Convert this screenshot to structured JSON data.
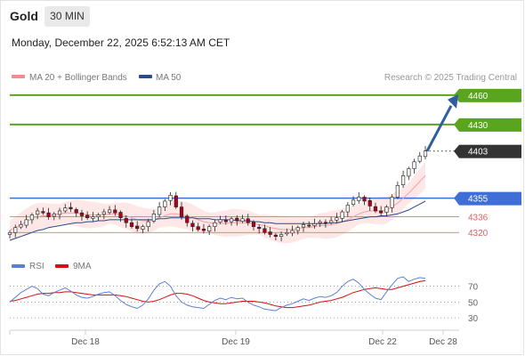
{
  "header": {
    "instrument": "Gold",
    "timeframe": "30 MIN",
    "datetime": "Monday, December 22, 2025 6:52:13 AM CET"
  },
  "legend": {
    "ma20_bb": "MA 20 + Bollinger Bands",
    "ma50": "MA 50",
    "credit": "Research © 2025 Trading Central",
    "rsi": "RSI",
    "ma9": "9MA"
  },
  "colors": {
    "up_candle": "#f7f7f7",
    "down_candle": "#b0001e",
    "bollinger_fill": "#fde0df",
    "bollinger_line": "#f6a0a0",
    "ma20": "#f6a0a0",
    "ma50": "#2a4a8a",
    "resistance": "#5aa51e",
    "pivot": "#3f6fd6",
    "support": "#e06060",
    "current": "#333333",
    "arrow": "#2f5d9f",
    "rsi": "#5b7fd8",
    "rsi_ma": "#d51010"
  },
  "chart_data": [
    {
      "type": "candlestick",
      "title": "Gold",
      "subtitle": "30 MIN",
      "x_tick_labels": [
        "Dec 18",
        "Dec 19",
        "Dec 22",
        "Dec 28"
      ],
      "y_range": [
        4303,
        4468
      ],
      "levels": [
        {
          "value": 4460,
          "label": "4460",
          "kind": "resistance"
        },
        {
          "value": 4430,
          "label": "4430",
          "kind": "resistance"
        },
        {
          "value": 4403,
          "label": "4403",
          "kind": "current"
        },
        {
          "value": 4355,
          "label": "4355",
          "kind": "pivot"
        },
        {
          "value": 4336,
          "label": "4336",
          "kind": "support"
        },
        {
          "value": 4320,
          "label": "4320",
          "kind": "support"
        }
      ],
      "price_path": [
        4320,
        4325,
        4328,
        4333,
        4338,
        4342,
        4340,
        4336,
        4339,
        4342,
        4345,
        4344,
        4340,
        4337,
        4335,
        4336,
        4338,
        4341,
        4343,
        4340,
        4335,
        4330,
        4326,
        4324,
        4326,
        4331,
        4339,
        4346,
        4352,
        4358,
        4346,
        4336,
        4330,
        4326,
        4323,
        4322,
        4326,
        4330,
        4333,
        4331,
        4334,
        4332,
        4334,
        4330,
        4326,
        4324,
        4320,
        4318,
        4316,
        4318,
        4320,
        4322,
        4325,
        4328,
        4327,
        4329,
        4331,
        4330,
        4332,
        4335,
        4341,
        4348,
        4353,
        4356,
        4352,
        4347,
        4342,
        4340,
        4346,
        4356,
        4368,
        4378,
        4385,
        4392,
        4398,
        4403
      ],
      "ma20_path": [
        4322,
        4325,
        4328,
        4331,
        4334,
        4336,
        4337,
        4337,
        4338,
        4339,
        4340,
        4340,
        4340,
        4339,
        4338,
        4338,
        4338,
        4338,
        4339,
        4339,
        4338,
        4337,
        4335,
        4333,
        4332,
        4332,
        4333,
        4335,
        4337,
        4339,
        4339,
        4338,
        4337,
        4335,
        4333,
        4331,
        4330,
        4329,
        4329,
        4329,
        4330,
        4330,
        4330,
        4330,
        4329,
        4328,
        4327,
        4325,
        4324,
        4323,
        4323,
        4323,
        4324,
        4325,
        4325,
        4326,
        4327,
        4327,
        4328,
        4329,
        4331,
        4333,
        4336,
        4339,
        4341,
        4342,
        4342,
        4342,
        4343,
        4346,
        4350,
        4355,
        4360,
        4366,
        4372,
        4378
      ],
      "ma50_path": [
        4312,
        4314,
        4316,
        4318,
        4320,
        4322,
        4323,
        4325,
        4326,
        4327,
        4328,
        4329,
        4330,
        4330,
        4331,
        4331,
        4332,
        4332,
        4333,
        4333,
        4333,
        4333,
        4333,
        4333,
        4333,
        4333,
        4333,
        4334,
        4334,
        4335,
        4335,
        4335,
        4335,
        4335,
        4334,
        4334,
        4334,
        4333,
        4333,
        4333,
        4333,
        4332,
        4332,
        4332,
        4331,
        4331,
        4330,
        4330,
        4329,
        4329,
        4329,
        4329,
        4329,
        4329,
        4329,
        4329,
        4329,
        4329,
        4330,
        4330,
        4331,
        4332,
        4333,
        4334,
        4335,
        4336,
        4336,
        4337,
        4337,
        4338,
        4339,
        4341,
        4343,
        4346,
        4349,
        4352
      ],
      "bollinger_width": 10,
      "forecast_arrow": {
        "from": 4403,
        "to": 4460
      }
    },
    {
      "type": "line",
      "title": "RSI",
      "y_range": [
        20,
        82
      ],
      "y_ticks": [
        70,
        50,
        30
      ],
      "series": [
        {
          "name": "RSI",
          "values": [
            50,
            56,
            62,
            66,
            70,
            67,
            60,
            58,
            62,
            65,
            68,
            64,
            59,
            56,
            55,
            57,
            60,
            62,
            63,
            58,
            52,
            47,
            44,
            42,
            46,
            54,
            65,
            73,
            76,
            70,
            58,
            50,
            46,
            44,
            43,
            42,
            47,
            52,
            55,
            53,
            56,
            54,
            55,
            50,
            46,
            44,
            41,
            40,
            39,
            43,
            46,
            48,
            51,
            54,
            52,
            55,
            57,
            56,
            58,
            62,
            70,
            76,
            79,
            74,
            66,
            60,
            55,
            53,
            63,
            72,
            80,
            82,
            76,
            79,
            81,
            80
          ]
        },
        {
          "name": "9MA",
          "values": [
            51,
            52,
            54,
            56,
            58,
            60,
            61,
            61,
            62,
            62,
            63,
            63,
            62,
            61,
            60,
            59,
            59,
            59,
            59,
            59,
            58,
            57,
            55,
            53,
            51,
            50,
            51,
            53,
            56,
            59,
            61,
            61,
            60,
            58,
            55,
            52,
            50,
            49,
            48,
            48,
            49,
            50,
            51,
            51,
            51,
            50,
            49,
            47,
            45,
            44,
            43,
            43,
            44,
            45,
            46,
            48,
            50,
            51,
            52,
            54,
            56,
            59,
            62,
            64,
            66,
            67,
            68,
            67,
            66,
            66,
            68,
            70,
            72,
            74,
            76,
            77
          ]
        }
      ]
    }
  ]
}
